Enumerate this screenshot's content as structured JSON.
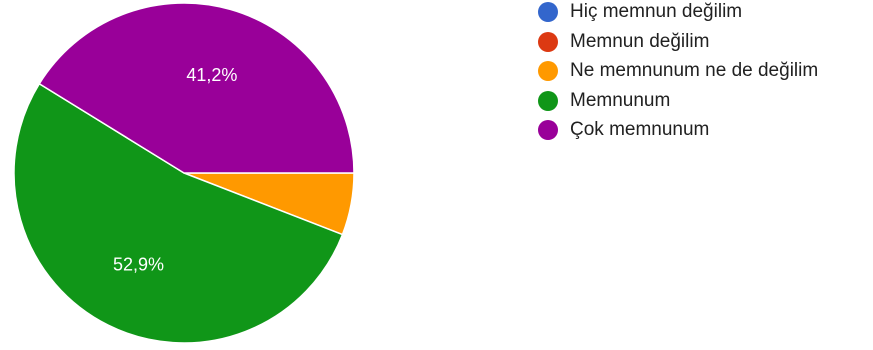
{
  "chart_data": {
    "type": "pie",
    "slices": [
      {
        "label": "Hiç memnun değilim",
        "value": 0,
        "color": "#3366cc"
      },
      {
        "label": "Memnun değilim",
        "value": 0,
        "color": "#dc3912"
      },
      {
        "label": "Ne memnunum ne de değilim",
        "value": 5.9,
        "color": "#ff9900"
      },
      {
        "label": "Memnunum",
        "value": 52.9,
        "color": "#109618"
      },
      {
        "label": "Çok memnunum",
        "value": 41.2,
        "color": "#990099"
      }
    ],
    "data_labels": [
      "",
      "",
      "",
      "52,9%",
      "41,2%"
    ],
    "start": "3 o'clock",
    "direction": "clockwise",
    "legend_position": "right"
  }
}
